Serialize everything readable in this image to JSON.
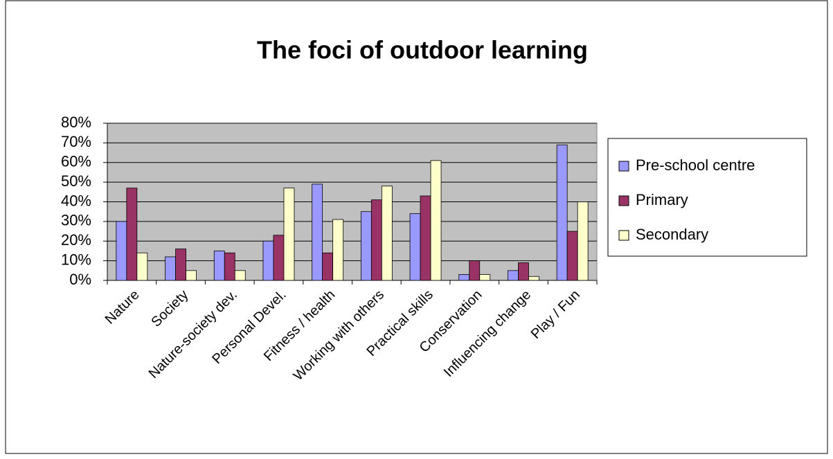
{
  "chart_data": {
    "type": "bar",
    "title": "The foci of outdoor learning",
    "categories": [
      "Nature",
      "Society",
      "Nature-society dev.",
      "Personal Devel.",
      "Fitness / health",
      "Working with others",
      "Practical skills",
      "Conservation",
      "Influencing change",
      "Play / Fun"
    ],
    "series": [
      {
        "name": "Pre-school centre",
        "color": "#9999ff",
        "values": [
          30,
          12,
          15,
          20,
          49,
          35,
          34,
          3,
          5,
          69
        ]
      },
      {
        "name": "Primary",
        "color": "#993366",
        "values": [
          47,
          16,
          14,
          23,
          14,
          41,
          43,
          10,
          9,
          25
        ]
      },
      {
        "name": "Secondary",
        "color": "#ffffcc",
        "values": [
          14,
          5,
          5,
          47,
          31,
          48,
          61,
          3,
          2,
          40
        ]
      }
    ],
    "ylim": [
      0,
      80
    ],
    "yticks": [
      {
        "value": 0,
        "label": "0%"
      },
      {
        "value": 10,
        "label": "10%"
      },
      {
        "value": 20,
        "label": "20%"
      },
      {
        "value": 30,
        "label": "30%"
      },
      {
        "value": 40,
        "label": "40%"
      },
      {
        "value": 50,
        "label": "50%"
      },
      {
        "value": 60,
        "label": "60%"
      },
      {
        "value": 70,
        "label": "70%"
      },
      {
        "value": 80,
        "label": "80%"
      }
    ],
    "grid": true,
    "legend": "right",
    "plot_background": "#c0c0c0"
  }
}
